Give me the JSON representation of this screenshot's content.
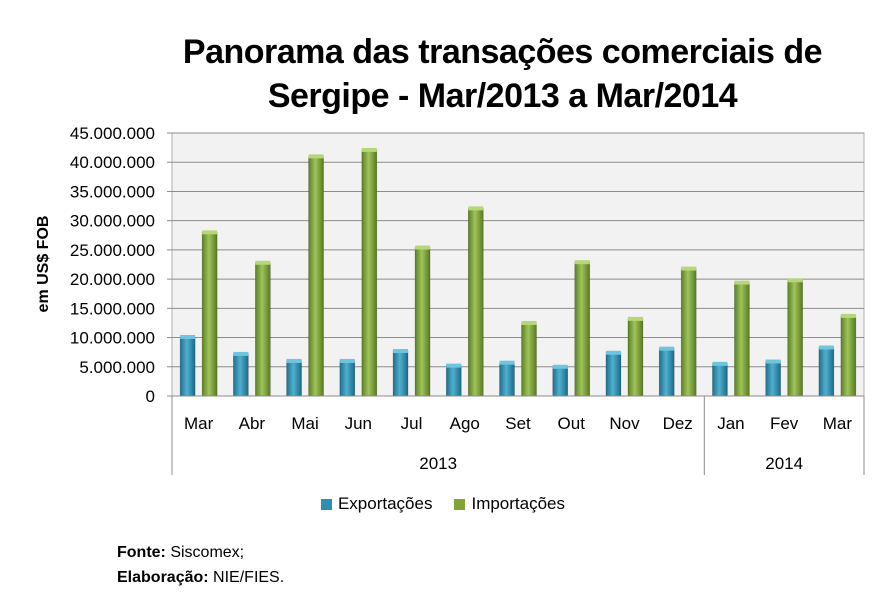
{
  "title_line1": "Panorama das transações comerciais de",
  "title_line2": "Sergipe - Mar/2013 a Mar/2014",
  "source": {
    "fonte_label": "Fonte:",
    "fonte_value": "Siscomex;",
    "elab_label": "Elaboração:",
    "elab_value": "NIE/FIES."
  },
  "colors": {
    "exportacoes": "#2E8FB0",
    "importacoes": "#7FA336",
    "plot_bg": "#F2F2F2"
  },
  "chart_data": {
    "type": "bar",
    "title": "Panorama das transações comerciais de Sergipe - Mar/2013 a Mar/2014",
    "xlabel": "",
    "ylabel": "em US$ FOB",
    "ylim": [
      0,
      45000000
    ],
    "ytick_labels": [
      "0",
      "5.000.000",
      "10.000.000",
      "15.000.000",
      "20.000.000",
      "25.000.000",
      "30.000.000",
      "35.000.000",
      "40.000.000",
      "45.000.000"
    ],
    "categories": [
      "Mar",
      "Abr",
      "Mai",
      "Jun",
      "Jul",
      "Ago",
      "Set",
      "Out",
      "Nov",
      "Dez",
      "Jan",
      "Fev",
      "Mar"
    ],
    "groups": [
      {
        "label": "2013",
        "count": 10
      },
      {
        "label": "2014",
        "count": 3
      }
    ],
    "series": [
      {
        "name": "Exportações",
        "values": [
          10100000,
          7200000,
          6000000,
          6000000,
          7700000,
          5200000,
          5700000,
          5000000,
          7400000,
          8100000,
          5500000,
          5900000,
          8300000
        ]
      },
      {
        "name": "Importações",
        "values": [
          28000000,
          22800000,
          41000000,
          42100000,
          25400000,
          32100000,
          12500000,
          22900000,
          13200000,
          21800000,
          19400000,
          19800000,
          13700000
        ]
      }
    ],
    "legend": "bottom",
    "grid": true
  }
}
